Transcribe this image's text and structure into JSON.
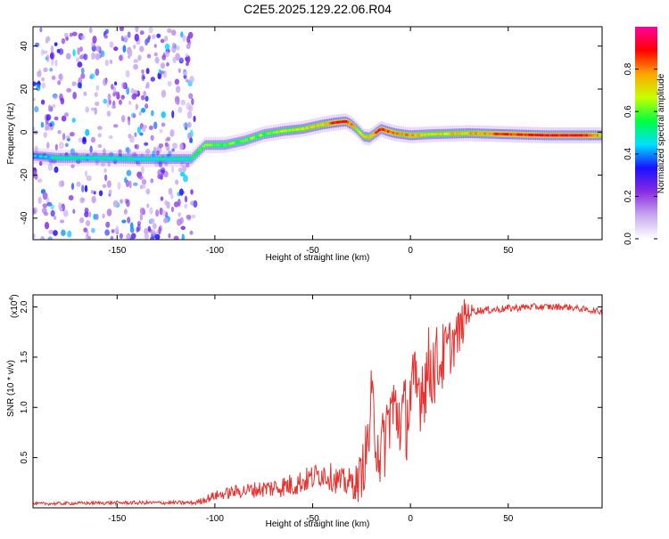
{
  "title": "C2E5.2025.129.22.06.R04",
  "chart_data": [
    {
      "type": "heatmap",
      "name": "spectrogram",
      "xlabel": "Height of straight line (km)",
      "ylabel": "Frequency (Hz)",
      "xlim": [
        -193,
        98
      ],
      "ylim": [
        -50,
        49
      ],
      "xticks": [
        -150,
        -100,
        -50,
        0,
        50
      ],
      "xtick_labels": [
        "-150",
        "-100",
        "-50",
        "0",
        "50"
      ],
      "yticks": [
        -40,
        -20,
        0,
        20,
        40
      ],
      "ytick_labels": [
        "-40",
        "-20",
        "0",
        "20",
        "40"
      ],
      "noise_region_x": [
        -193,
        -110
      ],
      "ridge": {
        "x": [
          -193,
          -180,
          -160,
          -140,
          -125,
          -112,
          -105,
          -95,
          -85,
          -75,
          -65,
          -55,
          -45,
          -38,
          -33,
          -30,
          -27,
          -24,
          -21,
          -18,
          -15,
          -12,
          -8,
          -4,
          0,
          10,
          30,
          50,
          70,
          90,
          98
        ],
        "y": [
          -11,
          -12,
          -12,
          -12.5,
          -12.5,
          -12.5,
          -6,
          -6,
          -4,
          -1,
          0.5,
          1.5,
          3.5,
          4.5,
          5,
          3.5,
          1,
          -2,
          -2.5,
          -0.5,
          1.5,
          0.5,
          -0.5,
          -1,
          -1.5,
          -1,
          -0.5,
          -1,
          -1.5,
          -1.5,
          -1.5
        ],
        "amplitude": [
          0.4,
          0.5,
          0.5,
          0.5,
          0.5,
          0.5,
          0.6,
          0.6,
          0.6,
          0.6,
          0.65,
          0.7,
          0.75,
          0.85,
          0.9,
          0.8,
          0.65,
          0.7,
          0.75,
          0.8,
          0.9,
          0.85,
          0.8,
          0.75,
          0.8,
          0.7,
          0.75,
          0.85,
          0.9,
          0.9,
          0.75
        ]
      }
    },
    {
      "type": "line",
      "name": "snr",
      "xlabel": "Height of straight line (km)",
      "ylabel": "SNR (10 * v/v)",
      "ylabel_exponent": "(x10",
      "ylabel_exponent_power": "4",
      "ylabel_exponent_close": ")",
      "xlim": [
        -193,
        98
      ],
      "ylim": [
        0,
        2.12
      ],
      "xticks": [
        -150,
        -100,
        -50,
        0,
        50
      ],
      "xtick_labels": [
        "-150",
        "-100",
        "-50",
        "0",
        "50"
      ],
      "yticks": [
        0.5,
        1.0,
        1.5,
        2.0
      ],
      "ytick_labels": [
        "0.5",
        "1.0",
        "1.5",
        "2.0"
      ],
      "color": "#e8312e",
      "envelope": {
        "x": [
          -193,
          -150,
          -110,
          -100,
          -90,
          -80,
          -70,
          -60,
          -50,
          -45,
          -40,
          -35,
          -30,
          -27,
          -25,
          -22,
          -20,
          -17,
          -15,
          -12,
          -10,
          -5,
          -2,
          0,
          5,
          10,
          15,
          20,
          25,
          28,
          30,
          40,
          60,
          80,
          98
        ],
        "y": [
          0.04,
          0.05,
          0.05,
          0.12,
          0.16,
          0.18,
          0.2,
          0.23,
          0.3,
          0.35,
          0.3,
          0.25,
          0.25,
          0.25,
          0.35,
          0.6,
          1.0,
          0.7,
          0.5,
          0.8,
          1.0,
          0.9,
          0.9,
          1.1,
          1.2,
          1.4,
          1.45,
          1.6,
          1.75,
          1.9,
          1.96,
          1.97,
          2.0,
          2.0,
          1.95
        ]
      },
      "amplitude": {
        "x": [
          -193,
          -110,
          -105,
          -80,
          -60,
          -40,
          -30,
          -25,
          -20,
          -10,
          0,
          10,
          20,
          28,
          32,
          98
        ],
        "y": [
          0.015,
          0.02,
          0.04,
          0.08,
          0.12,
          0.14,
          0.15,
          0.25,
          0.4,
          0.4,
          0.45,
          0.45,
          0.3,
          0.2,
          0.04,
          0.03
        ]
      }
    },
    {
      "type": "colorbar",
      "name": "amplitude-colorbar",
      "label": "Normalized spectral amplitude",
      "range": [
        0,
        1
      ],
      "ticks": [
        0.0,
        0.2,
        0.4,
        0.6,
        0.8
      ],
      "tick_labels": [
        "0.0",
        "0.2",
        "0.4",
        "0.6",
        "0.8"
      ],
      "colors": [
        "#ffffff",
        "#c8a8f0",
        "#8a2be2",
        "#1a10ff",
        "#00e0ff",
        "#00ff40",
        "#c8ff00",
        "#ffa500",
        "#ff0000",
        "#ff00a0"
      ]
    }
  ]
}
